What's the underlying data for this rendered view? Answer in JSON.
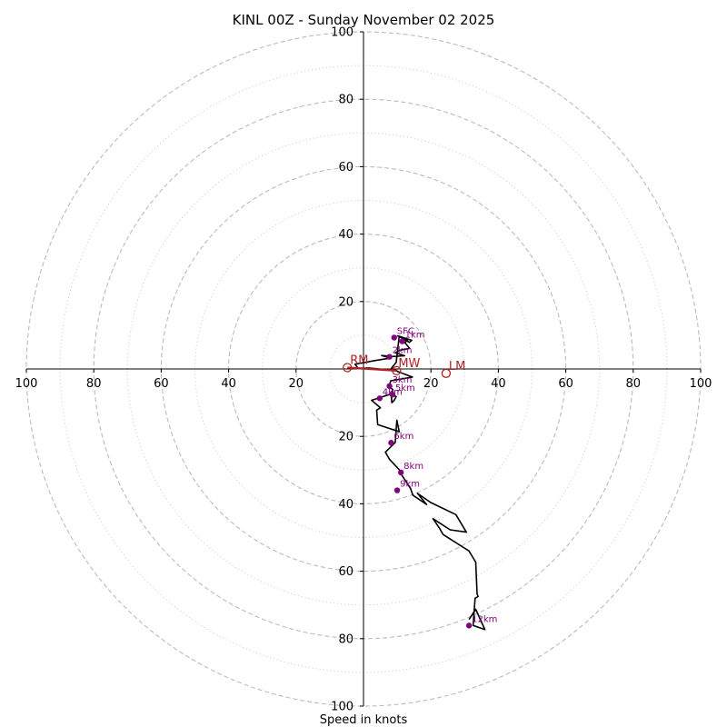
{
  "chart_data": {
    "type": "hodograph",
    "title": "KINL 00Z - Sunday November 02 2025",
    "xlabel": "Speed in knots",
    "range": 100,
    "major_rings": [
      20,
      40,
      60,
      80,
      100
    ],
    "minor_rings": [
      10,
      30,
      50,
      70,
      90
    ],
    "x_tick_labels": [
      "100",
      "80",
      "60",
      "40",
      "20",
      "20",
      "40",
      "60",
      "80",
      "100"
    ],
    "y_tick_labels_top": [
      "100",
      "80",
      "60",
      "40",
      "20"
    ],
    "y_tick_labels_bottom": [
      "20",
      "40",
      "60",
      "80",
      "100"
    ],
    "series_color": "#000000",
    "storm_color": "#b22222",
    "height_color": "#800080",
    "grid_color": "#bbbbbb",
    "hodograph": [
      [
        9.8,
        -0.5
      ],
      [
        1.5,
        0.3
      ],
      [
        -1.6,
        0.2
      ],
      [
        -2.5,
        1.4
      ],
      [
        3.5,
        2.5
      ],
      [
        8.0,
        3.2
      ],
      [
        5.4,
        4.0
      ],
      [
        8.5,
        3.7
      ],
      [
        12.2,
        3.9
      ],
      [
        9.4,
        4.8
      ],
      [
        11.0,
        5.6
      ],
      [
        13.7,
        6.1
      ],
      [
        12.3,
        7.8
      ],
      [
        13.1,
        8.6
      ],
      [
        10.1,
        9.8
      ],
      [
        13.6,
        7.9
      ],
      [
        14.3,
        8.5
      ],
      [
        10.6,
        9.7
      ],
      [
        9.7,
        2.0
      ],
      [
        8.3,
        0.2
      ],
      [
        9.8,
        -0.5
      ],
      [
        10.4,
        -0.9
      ],
      [
        14.5,
        -2.4
      ],
      [
        8.1,
        -3.5
      ],
      [
        7.5,
        -5.3
      ],
      [
        8.7,
        -6.1
      ],
      [
        8.4,
        -7.5
      ],
      [
        9.7,
        -8.2
      ],
      [
        9.1,
        -9.3
      ],
      [
        8.4,
        -10.0
      ],
      [
        8.2,
        -7.4
      ],
      [
        2.4,
        -9.3
      ],
      [
        5.0,
        -11.5
      ],
      [
        3.9,
        -12.2
      ],
      [
        4.2,
        -16.5
      ],
      [
        10.6,
        -18.6
      ],
      [
        9.9,
        -15.2
      ],
      [
        9.4,
        -21.8
      ],
      [
        6.5,
        -24.7
      ],
      [
        7.7,
        -26.8
      ],
      [
        10.9,
        -30.2
      ],
      [
        11.1,
        -31.1
      ],
      [
        14.0,
        -35.5
      ],
      [
        14.6,
        -37.4
      ],
      [
        18.7,
        -40.2
      ],
      [
        16.0,
        -36.9
      ],
      [
        19.9,
        -39.6
      ],
      [
        27.4,
        -43.2
      ],
      [
        30.5,
        -48.4
      ],
      [
        25.7,
        -47.7
      ],
      [
        20.6,
        -44.4
      ],
      [
        22.5,
        -47.2
      ],
      [
        23.6,
        -49.1
      ],
      [
        31.3,
        -54.0
      ],
      [
        33.3,
        -57.3
      ],
      [
        33.7,
        -66.7
      ],
      [
        34.0,
        -67.5
      ],
      [
        33.1,
        -68.0
      ],
      [
        32.5,
        -76.1
      ],
      [
        36.0,
        -77.3
      ],
      [
        33.3,
        -71.3
      ],
      [
        31.3,
        -74.3
      ]
    ],
    "height_markers": [
      {
        "label": "SFC",
        "x": 9.1,
        "y": 9.3
      },
      {
        "label": "1km",
        "x": 11.5,
        "y": 8.2
      },
      {
        "label": "2km",
        "x": 7.7,
        "y": 3.6
      },
      {
        "label": "3km",
        "x": 7.7,
        "y": -5.1
      },
      {
        "label": "5km",
        "x": 8.6,
        "y": -7.6
      },
      {
        "label": "4km",
        "x": 4.8,
        "y": -8.7
      },
      {
        "label": "6km",
        "x": 8.2,
        "y": -21.9
      },
      {
        "label": "8km",
        "x": 11.1,
        "y": -30.7
      },
      {
        "label": "9km",
        "x": 10.0,
        "y": -36.0
      },
      {
        "label": "12km",
        "x": 31.3,
        "y": -76.1
      }
    ],
    "storm_motion": {
      "RM": {
        "label": "RM",
        "x": -4.8,
        "y": 0.4
      },
      "LM": {
        "label": "LM",
        "x": 24.5,
        "y": -1.3
      },
      "MW": {
        "label": "MW",
        "x": 9.8,
        "y": -0.5
      }
    }
  }
}
